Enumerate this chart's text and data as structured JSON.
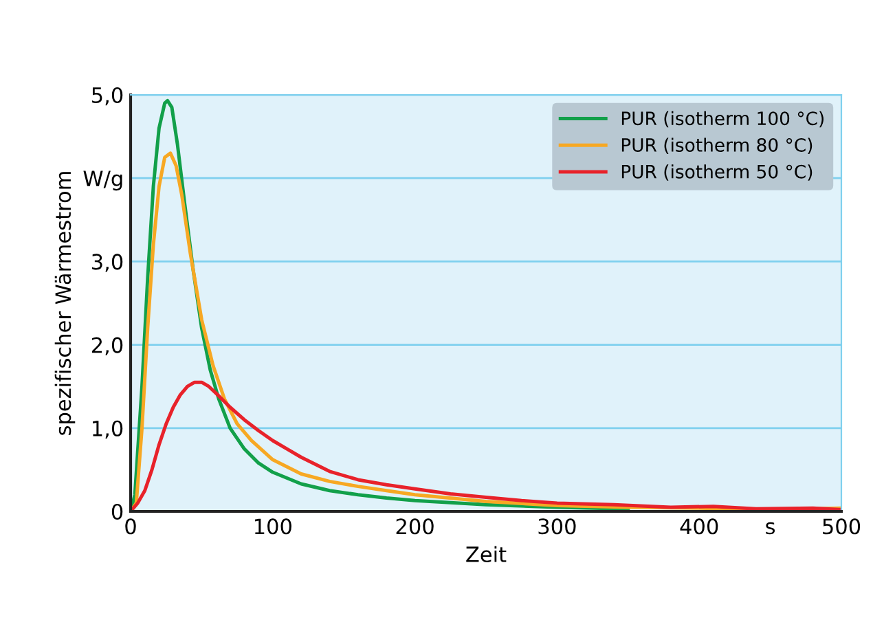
{
  "chart_data": {
    "type": "line",
    "xlabel": "Zeit",
    "ylabel": "spezifischer Wärmestrom",
    "xlim": [
      0,
      500
    ],
    "ylim": [
      0,
      5
    ],
    "xticks": [
      0,
      100,
      200,
      300,
      400,
      {
        "value": 450,
        "label": "s"
      },
      500
    ],
    "yticks": [
      0,
      {
        "value": 1,
        "label": "1,0"
      },
      {
        "value": 2,
        "label": "2,0"
      },
      {
        "value": 3,
        "label": "3,0"
      },
      {
        "value": 4,
        "label": "W/g"
      },
      {
        "value": 5,
        "label": "5,0"
      }
    ],
    "grid": "y",
    "legend": "top right",
    "line_style": "solid",
    "series": [
      {
        "name": "PUR (isotherm 100 °C)",
        "color": "#12a04a",
        "x": [
          0,
          3,
          8,
          12,
          16,
          20,
          24,
          26,
          29,
          33,
          38,
          44,
          50,
          56,
          62,
          70,
          80,
          90,
          100,
          120,
          140,
          160,
          180,
          200,
          250,
          300,
          350
        ],
        "values": [
          0,
          0.2,
          1.5,
          2.8,
          3.9,
          4.6,
          4.9,
          4.93,
          4.85,
          4.4,
          3.7,
          2.9,
          2.2,
          1.7,
          1.35,
          1.0,
          0.75,
          0.58,
          0.47,
          0.33,
          0.25,
          0.2,
          0.16,
          0.13,
          0.08,
          0.05,
          0.03
        ]
      },
      {
        "name": "PUR (isotherm 80 °C)",
        "color": "#f7a823",
        "x": [
          0,
          4,
          8,
          12,
          16,
          20,
          24,
          28,
          32,
          36,
          42,
          50,
          58,
          66,
          75,
          85,
          100,
          120,
          140,
          160,
          180,
          200,
          250,
          300,
          350,
          400,
          450,
          500
        ],
        "values": [
          0,
          0.1,
          1.0,
          2.2,
          3.2,
          3.9,
          4.25,
          4.3,
          4.15,
          3.8,
          3.1,
          2.3,
          1.75,
          1.35,
          1.05,
          0.85,
          0.62,
          0.45,
          0.36,
          0.3,
          0.25,
          0.2,
          0.12,
          0.07,
          0.05,
          0.04,
          0.02,
          0.04
        ]
      },
      {
        "name": "PUR (isotherm 50 °C)",
        "color": "#e8222a",
        "x": [
          0,
          5,
          10,
          15,
          20,
          25,
          30,
          35,
          40,
          45,
          50,
          55,
          60,
          70,
          80,
          90,
          100,
          110,
          120,
          140,
          160,
          180,
          200,
          225,
          250,
          275,
          300,
          340,
          380,
          410,
          440,
          480,
          500
        ],
        "values": [
          0,
          0.1,
          0.25,
          0.5,
          0.8,
          1.05,
          1.25,
          1.4,
          1.5,
          1.55,
          1.55,
          1.5,
          1.42,
          1.25,
          1.1,
          0.97,
          0.85,
          0.75,
          0.65,
          0.48,
          0.38,
          0.32,
          0.27,
          0.21,
          0.17,
          0.13,
          0.1,
          0.08,
          0.05,
          0.06,
          0.03,
          0.04,
          0.02
        ]
      }
    ]
  }
}
